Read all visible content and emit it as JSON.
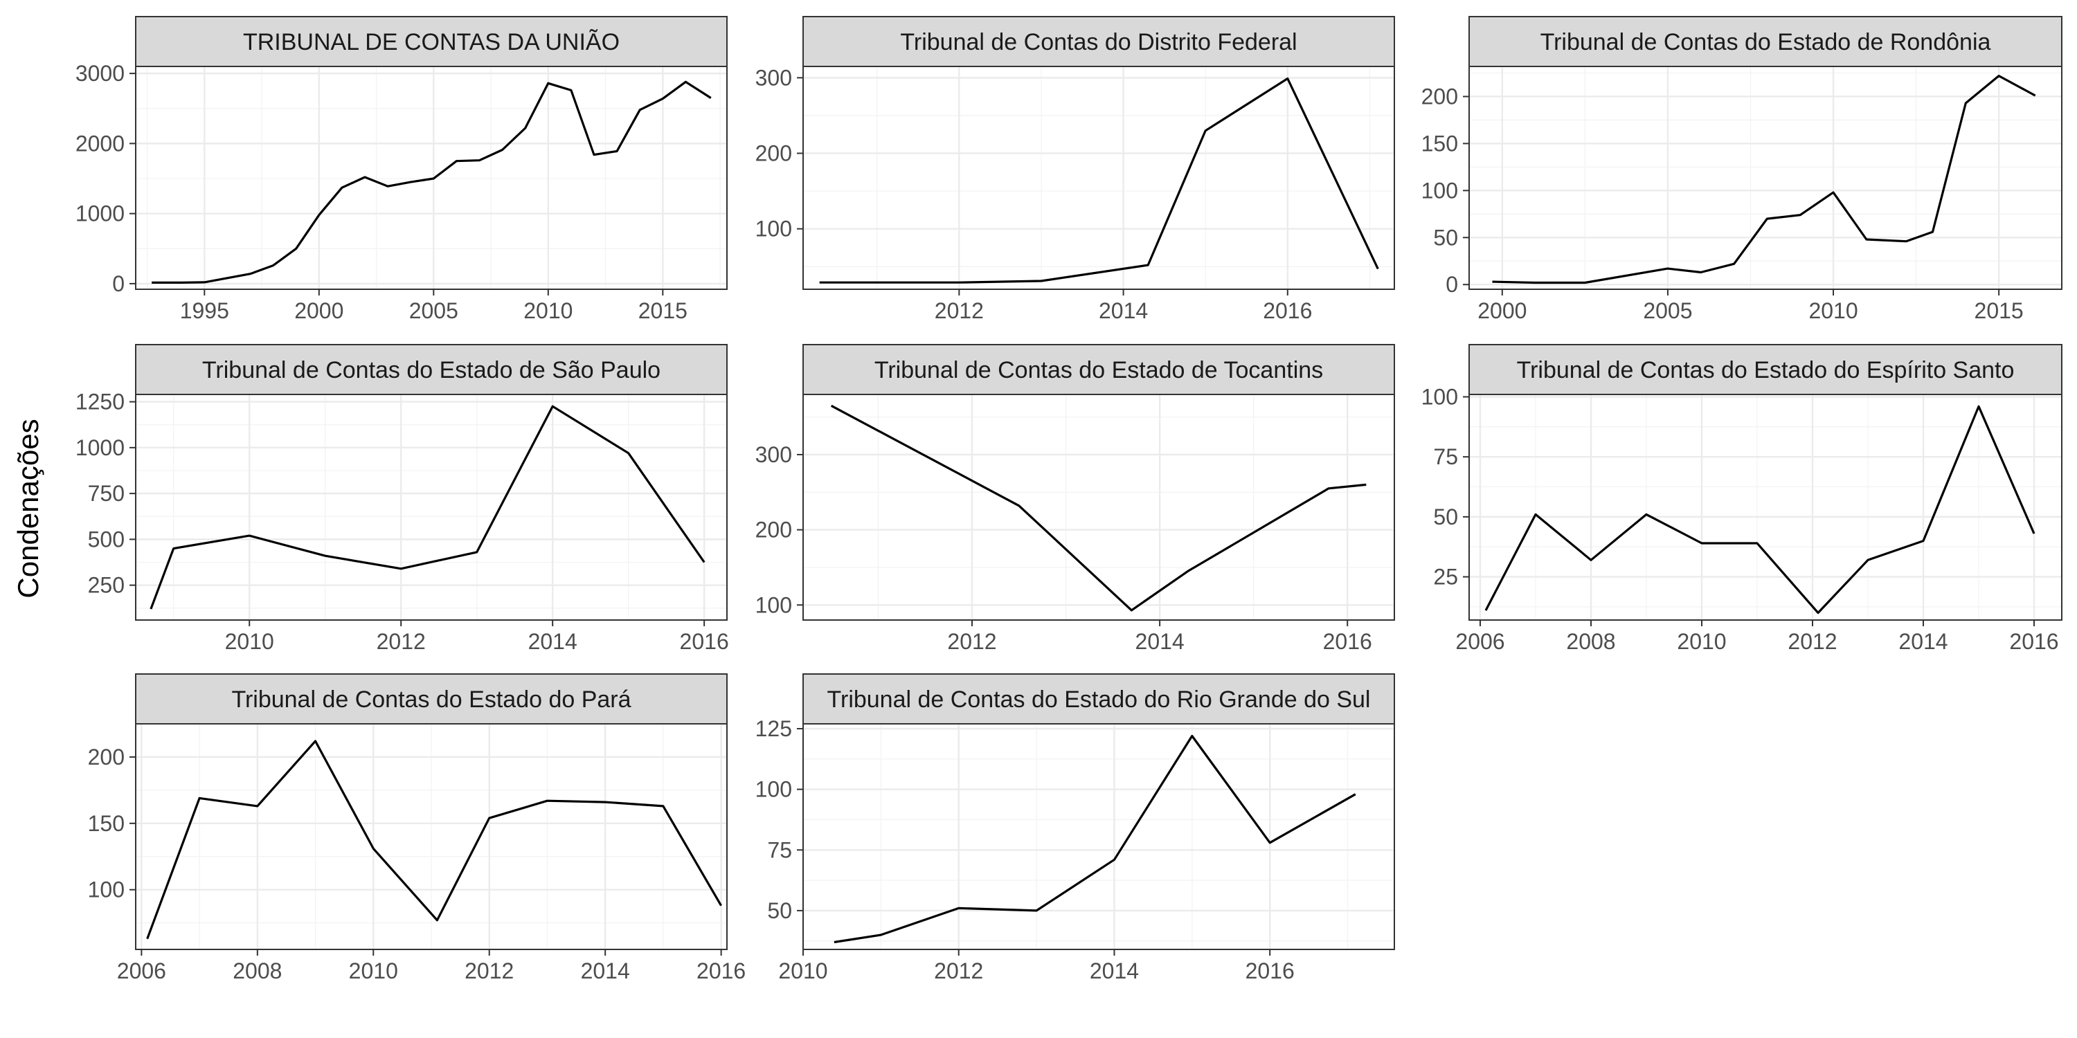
{
  "chart_data": {
    "type": "line",
    "ylabel": "Condenações",
    "xlabel": "",
    "panels": [
      {
        "title": "TRIBUNAL DE CONTAS DA UNIÃO",
        "xlim": [
          1992,
          2017.8
        ],
        "ylim": [
          -80,
          3100
        ],
        "xticks": [
          1995,
          2000,
          2005,
          2010,
          2015
        ],
        "yticks": [
          0,
          1000,
          2000,
          3000
        ],
        "x": [
          1992.7,
          1994,
          1995,
          1996,
          1997,
          1998,
          1999,
          2000,
          2001,
          2002,
          2003,
          2004,
          2005,
          2006,
          2007,
          2008,
          2009,
          2010,
          2011,
          2012,
          2013,
          2014,
          2015,
          2016,
          2017.1
        ],
        "y": [
          15,
          15,
          20,
          80,
          140,
          260,
          500,
          980,
          1370,
          1520,
          1390,
          1450,
          1500,
          1750,
          1760,
          1910,
          2220,
          2860,
          2760,
          1840,
          1890,
          2480,
          2640,
          2880,
          2650
        ]
      },
      {
        "title": "Tribunal de Contas do Distrito Federal",
        "xlim": [
          2010.1,
          2017.3
        ],
        "ylim": [
          20,
          315
        ],
        "xticks": [
          2012,
          2014,
          2016
        ],
        "yticks": [
          100,
          200,
          300
        ],
        "x": [
          2010.3,
          2011,
          2012,
          2013,
          2014.3,
          2015,
          2016,
          2017.1
        ],
        "y": [
          29,
          29,
          29,
          31,
          52,
          230,
          299,
          47
        ]
      },
      {
        "title": "Tribunal de Contas do Estado de Rondônia",
        "xlim": [
          1999,
          2016.9
        ],
        "ylim": [
          -5,
          232
        ],
        "xticks": [
          2000,
          2005,
          2010,
          2015
        ],
        "yticks": [
          0,
          50,
          100,
          150,
          200
        ],
        "x": [
          1999.7,
          2001,
          2002.5,
          2005,
          2006,
          2007,
          2008,
          2009,
          2010,
          2011,
          2012.2,
          2013,
          2014,
          2015,
          2016.1
        ],
        "y": [
          3,
          2,
          2,
          17,
          13,
          22,
          70,
          74,
          98,
          48,
          46,
          56,
          193,
          222,
          201
        ]
      },
      {
        "title": "Tribunal de Contas do Estado de São Paulo",
        "xlim": [
          2008.5,
          2016.3
        ],
        "ylim": [
          60,
          1290
        ],
        "xticks": [
          2010,
          2012,
          2014,
          2016
        ],
        "yticks": [
          250,
          500,
          750,
          1000,
          1250
        ],
        "x": [
          2008.7,
          2009,
          2010,
          2011,
          2012,
          2013,
          2014,
          2015,
          2016
        ],
        "y": [
          120,
          450,
          520,
          410,
          340,
          430,
          1225,
          970,
          375
        ]
      },
      {
        "title": "Tribunal de Contas do Estado de Tocantins",
        "xlim": [
          2010.2,
          2016.5
        ],
        "ylim": [
          80,
          380
        ],
        "xticks": [
          2012,
          2014,
          2016
        ],
        "yticks": [
          100,
          200,
          300
        ],
        "x": [
          2010.5,
          2012.5,
          2013.7,
          2014.3,
          2015.8,
          2016.2
        ],
        "y": [
          365,
          232,
          93,
          145,
          255,
          260
        ]
      },
      {
        "title": "Tribunal de Contas do Estado do Espírito Santo",
        "xlim": [
          2005.8,
          2016.5
        ],
        "ylim": [
          7,
          101
        ],
        "xticks": [
          2006,
          2008,
          2010,
          2012,
          2014,
          2016
        ],
        "yticks": [
          25,
          50,
          75,
          100
        ],
        "x": [
          2006.1,
          2007,
          2008,
          2009,
          2010,
          2011,
          2012.1,
          2013,
          2014,
          2015,
          2016
        ],
        "y": [
          11,
          51,
          32,
          51,
          39,
          39,
          10,
          32,
          40,
          96,
          43
        ]
      },
      {
        "title": "Tribunal de Contas do Estado do Pará",
        "xlim": [
          2005.9,
          2016.1
        ],
        "ylim": [
          55,
          225
        ],
        "xticks": [
          2006,
          2008,
          2010,
          2012,
          2014,
          2016
        ],
        "yticks": [
          100,
          150,
          200
        ],
        "x": [
          2006.1,
          2007,
          2008,
          2009,
          2010,
          2011.1,
          2012,
          2013,
          2014,
          2015,
          2016
        ],
        "y": [
          63,
          169,
          163,
          212,
          131,
          77,
          154,
          167,
          166,
          163,
          88
        ]
      },
      {
        "title": "Tribunal de Contas do Estado do Rio Grande do Sul",
        "xlim": [
          2010,
          2017.6
        ],
        "ylim": [
          34,
          127
        ],
        "xticks": [
          2010,
          2012,
          2014,
          2016
        ],
        "yticks": [
          50,
          75,
          100,
          125
        ],
        "x": [
          2010.4,
          2011,
          2012,
          2013,
          2014,
          2015,
          2016,
          2017.1
        ],
        "y": [
          37,
          40,
          51,
          50,
          71,
          122,
          78,
          98
        ]
      }
    ]
  }
}
